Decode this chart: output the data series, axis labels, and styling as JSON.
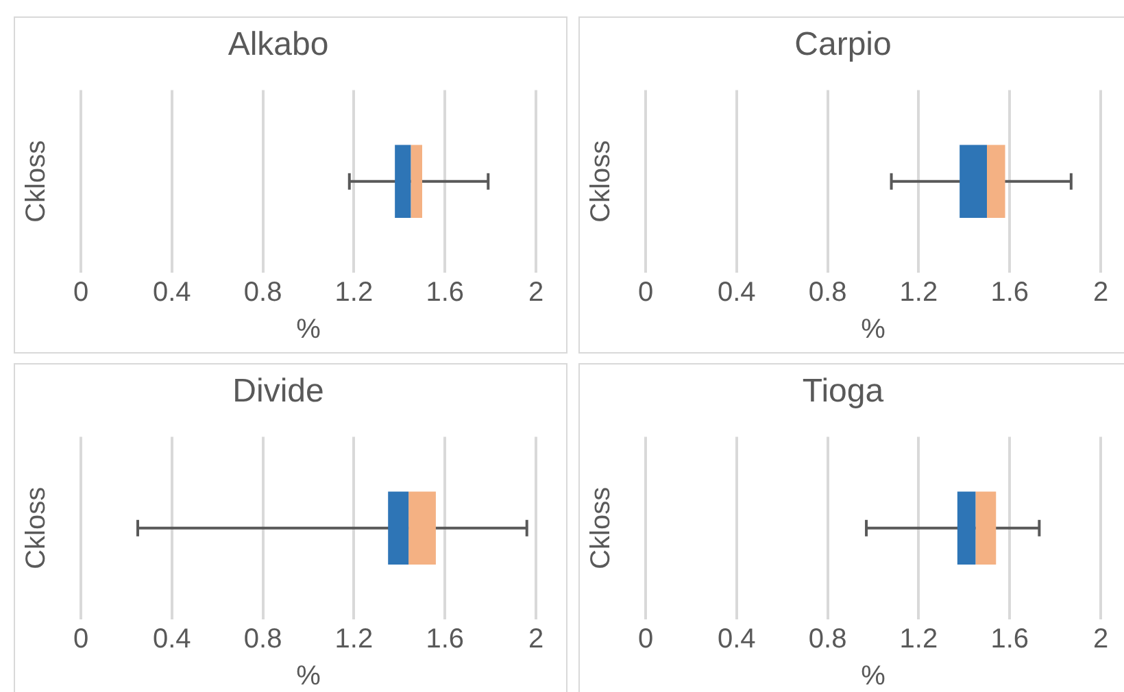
{
  "chart_data": [
    {
      "type": "box",
      "title": "Alkabo",
      "ylabel": "Ckloss",
      "xlabel": "%",
      "orientation": "horizontal",
      "categories": [
        null
      ],
      "color": "#f4b183",
      "colors": [
        "#2e75b6"
      ],
      "boxes": [
        {
          "low": 1.18,
          "q1": 1.38,
          "median": 1.45,
          "q3": 1.5,
          "high": 1.79
        }
      ],
      "xlim": [
        0,
        2
      ],
      "xticks": [
        0,
        0.4,
        0.8,
        1.2,
        1.6,
        2
      ],
      "grid": "x",
      "tick_labels": "x"
    },
    {
      "type": "box",
      "title": "Carpio",
      "ylabel": "Ckloss",
      "xlabel": "%",
      "orientation": "horizontal",
      "categories": [
        null
      ],
      "color": "#f4b183",
      "colors": [
        "#2e75b6"
      ],
      "boxes": [
        {
          "low": 1.08,
          "q1": 1.38,
          "median": 1.5,
          "q3": 1.58,
          "high": 1.87
        }
      ],
      "xlim": [
        0,
        2
      ],
      "xticks": [
        0,
        0.4,
        0.8,
        1.2,
        1.6,
        2
      ],
      "grid": "x",
      "tick_labels": "x"
    },
    {
      "type": "box",
      "title": "Divide",
      "ylabel": "Ckloss",
      "xlabel": "%",
      "orientation": "horizontal",
      "categories": [
        null
      ],
      "color": "#f4b183",
      "colors": [
        "#2e75b6"
      ],
      "boxes": [
        {
          "low": 0.25,
          "q1": 1.35,
          "median": 1.44,
          "q3": 1.56,
          "high": 1.96
        }
      ],
      "xlim": [
        0,
        2
      ],
      "xticks": [
        0,
        0.4,
        0.8,
        1.2,
        1.6,
        2
      ],
      "grid": "x",
      "tick_labels": "x"
    },
    {
      "type": "box",
      "title": "Tioga",
      "ylabel": "Ckloss",
      "xlabel": "%",
      "orientation": "horizontal",
      "categories": [
        null
      ],
      "color": "#f4b183",
      "colors": [
        "#2e75b6"
      ],
      "boxes": [
        {
          "low": 0.97,
          "q1": 1.37,
          "median": 1.45,
          "q3": 1.54,
          "high": 1.73
        }
      ],
      "xlim": [
        0,
        2
      ],
      "xticks": [
        0,
        0.4,
        0.8,
        1.2,
        1.6,
        2
      ],
      "grid": "x",
      "tick_labels": "x"
    }
  ]
}
